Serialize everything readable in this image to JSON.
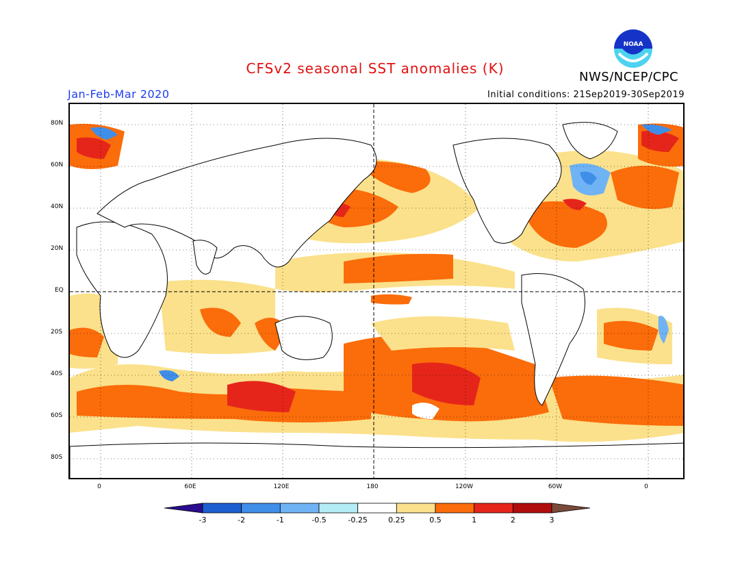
{
  "title": "CFSv2 seasonal SST anomalies (K)",
  "agency": "NWS/NCEP/CPC",
  "period": "Jan-Feb-Mar 2020",
  "initial_conditions": "Initial conditions: 21Sep2019-30Sep2019",
  "logo": {
    "text": "NOAA",
    "icon": "noaa-logo"
  },
  "colors": {
    "title": "#e01010",
    "period": "#1e3cf0",
    "ocean_neutral": "#ffffff"
  },
  "lat_ticks": [
    "80N",
    "60N",
    "40N",
    "20N",
    "EQ",
    "20S",
    "40S",
    "60S",
    "80S"
  ],
  "lon_ticks": [
    "0",
    "60E",
    "120E",
    "180",
    "120W",
    "60W",
    "0"
  ],
  "colorbar": {
    "labels": [
      "-3",
      "-2",
      "-1",
      "-0.5",
      "-0.25",
      "0.25",
      "0.5",
      "1",
      "2",
      "3"
    ],
    "colors": [
      "#2a0d8f",
      "#1c5fd0",
      "#3f8ee8",
      "#6fb3f5",
      "#b4ecf5",
      "#ffffff",
      "#fbe18b",
      "#fb6c0a",
      "#e5251a",
      "#b00d0d",
      "#7a4a3a"
    ]
  }
}
